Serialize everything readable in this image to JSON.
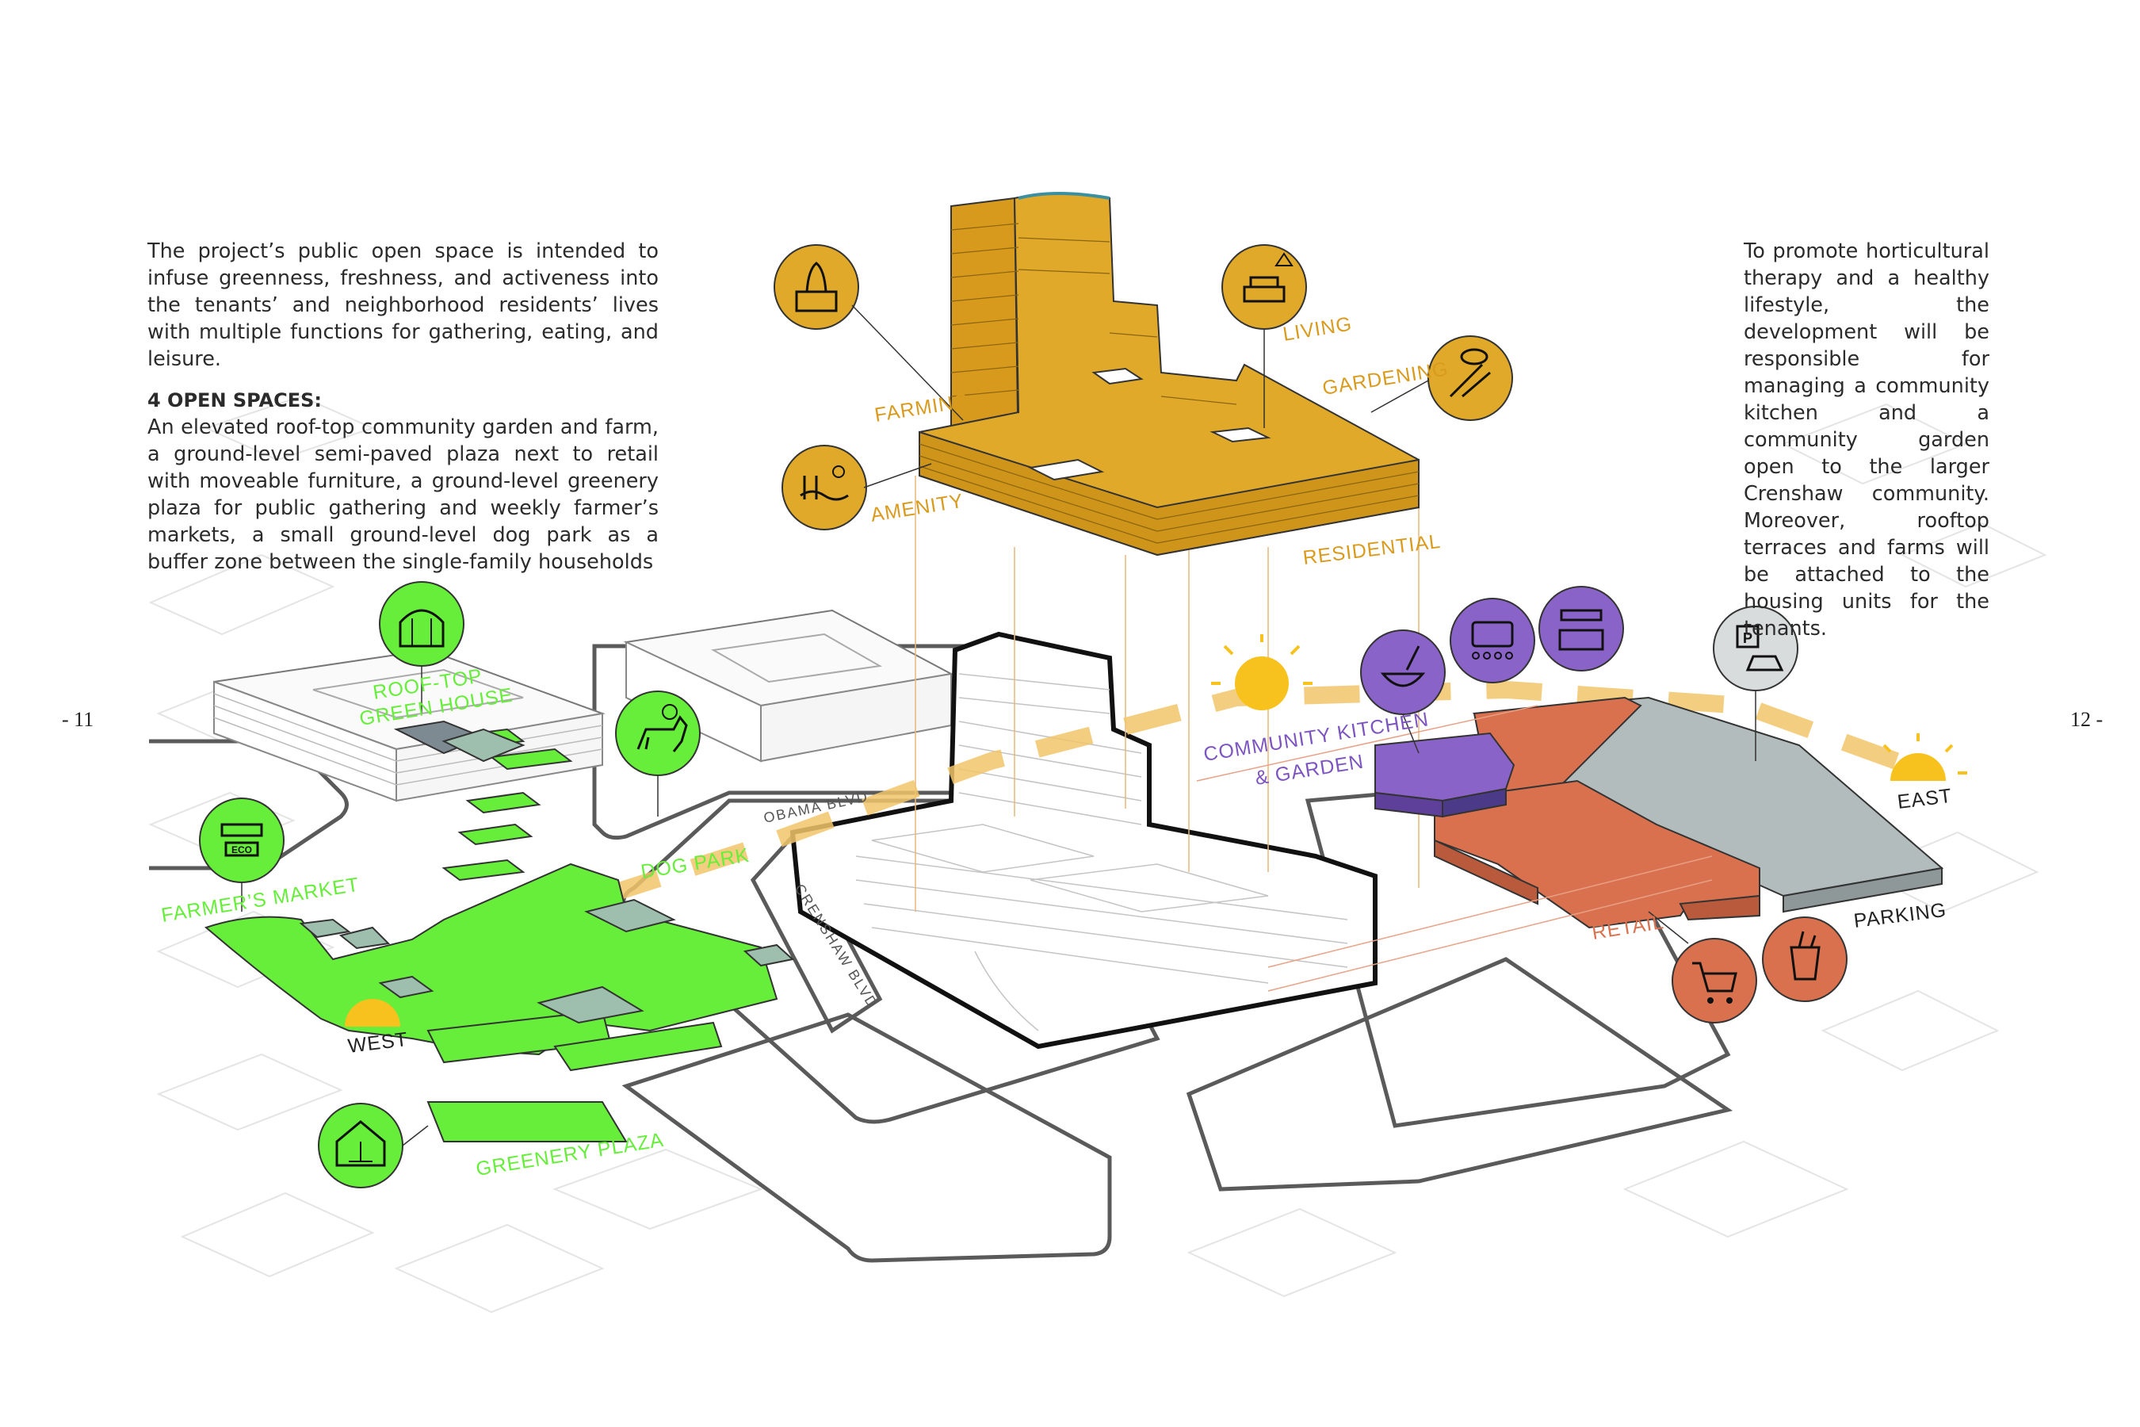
{
  "page_numbers": {
    "left": "- 11",
    "right": "12 -"
  },
  "left_text": {
    "intro": "The project’s public open space is intended to infuse greenness, freshness, and activeness into the tenants’ and neighborhood residents’ lives with multiple functions for gathering, eating, and leisure.",
    "heading": "4 OPEN SPACES:",
    "body": "An elevated roof-top community garden and farm, a ground-level semi-paved plaza next to retail with moveable furniture, a ground-level greenery plaza for public gathering and weekly farmer’s markets, a small ground-level dog park as a buffer zone between the single-family households"
  },
  "right_text": {
    "body": "To promote horticultural therapy and a healthy lifestyle, the development will be responsible for managing a community kitchen and a community garden open to the larger Crenshaw community. Moreover, rooftop terraces and farms will be attached to the housing units for the tenants."
  },
  "labels": {
    "farming": "FARMING",
    "amenity": "AMENITY",
    "living": "LIVING",
    "gardening": "GARDENING",
    "residential": "RESIDENTIAL",
    "roof_top_green_house": [
      "ROOF-TOP",
      "GREEN HOUSE"
    ],
    "farmers_market": "FARMER’S MARKET",
    "dog_park": "DOG PARK",
    "greenery_plaza": "GREENERY PLAZA",
    "west": "WEST",
    "east": "EAST",
    "community_kitchen": [
      "COMMUNITY KITCHEN",
      "& GARDEN"
    ],
    "retail": "RETAIL",
    "parking": "PARKING",
    "obama_blvd": "OBAMA BLVD",
    "crenshaw_blvd": "CRENSHAW BLVD"
  },
  "colors": {
    "residential": "#e0a92a",
    "green": "#66ee3a",
    "purple": "#8a63c9",
    "retail": "#d9714f",
    "parking": "#b3bcbc",
    "sun": "#f7c21e",
    "icon_gray": "#d8dcdc"
  },
  "icons": [
    "farming-icon",
    "amenity-icon",
    "living-icon",
    "gardening-icon",
    "greenhouse-icon",
    "market-stall-icon",
    "dog-icon",
    "pavilion-icon",
    "kitchen-garden-icon",
    "community-gathering-icon",
    "kitchen-icon",
    "parking-icon",
    "cart-icon",
    "grocery-icon",
    "sun-icon"
  ]
}
